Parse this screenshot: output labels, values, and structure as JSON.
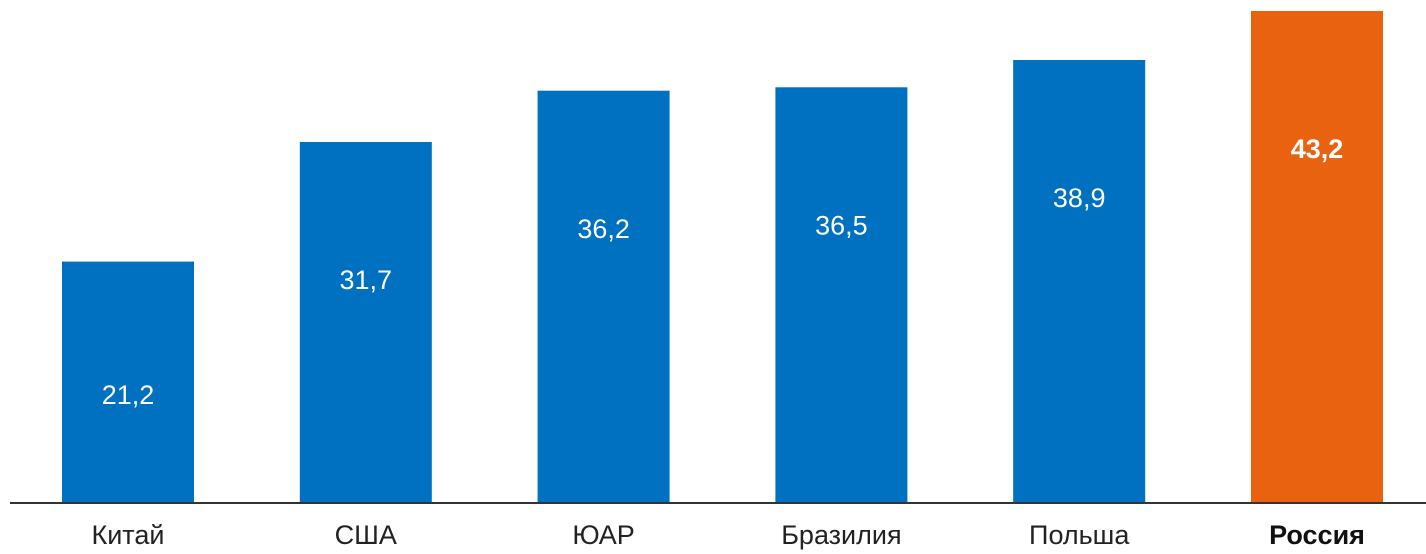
{
  "chart_data": {
    "type": "bar",
    "title": "",
    "xlabel": "",
    "ylabel": "",
    "categories": [
      "Китай",
      "США",
      "ЮАР",
      "Бразилия",
      "Польша",
      "Россия"
    ],
    "values": [
      21.2,
      31.7,
      36.2,
      36.5,
      38.9,
      43.2
    ],
    "value_labels": [
      "21,2",
      "31,7",
      "36,2",
      "36,5",
      "38,9",
      "43,2"
    ],
    "highlighted_category": "Россия",
    "ylim": [
      0,
      43.2
    ],
    "grid": false,
    "legend": "none",
    "colors": {
      "bar": "#0070c0",
      "highlight_bar": "#e8620f",
      "value_text": "#ffffff",
      "axis": "#333333",
      "label_text": "#222222"
    }
  }
}
